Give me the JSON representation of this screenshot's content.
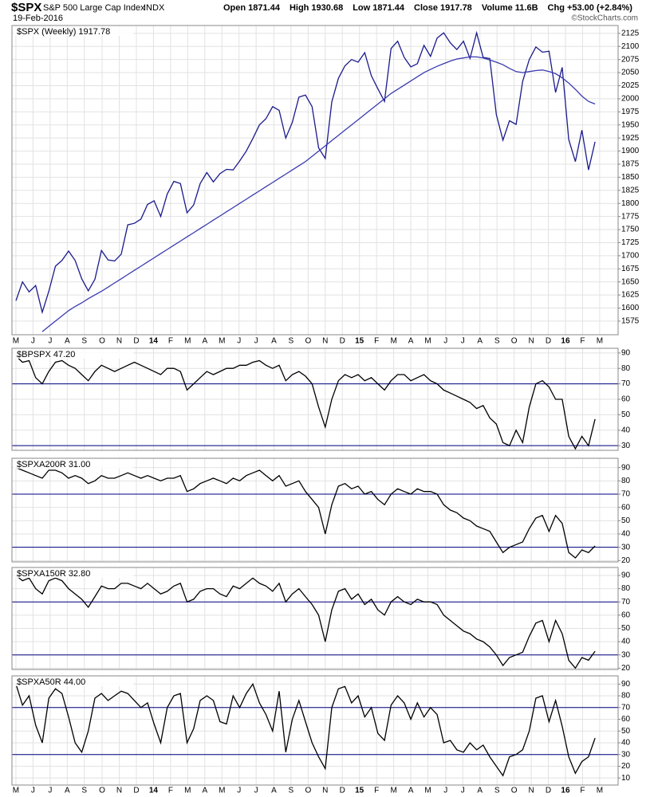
{
  "header": {
    "symbol": "$SPX",
    "name": "S&P 500 Large Cap Index",
    "exchange": "INDX",
    "date": "19-Feb-2016",
    "stats": [
      "Open 1871.44",
      "High 1930.68",
      "Low 1871.44",
      "Close 1917.78",
      "Volume 11.6B",
      "Chg +53.00 (+2.84%)"
    ],
    "credit": "©StockCharts.com"
  },
  "chart_data": [
    {
      "type": "line",
      "label": "$SPX (Weekly) 1917.78",
      "xlim": [
        -0.6,
        91.5
      ],
      "xticks": [
        {
          "value": 0,
          "label": "M"
        },
        {
          "value": 2.6,
          "label": "J"
        },
        {
          "value": 5.2,
          "label": "J"
        },
        {
          "value": 7.8,
          "label": "A"
        },
        {
          "value": 10.4,
          "label": "S"
        },
        {
          "value": 13.1,
          "label": "O"
        },
        {
          "value": 15.7,
          "label": "N"
        },
        {
          "value": 18.3,
          "label": "D"
        },
        {
          "value": 20.9,
          "label": "14"
        },
        {
          "value": 23.5,
          "label": "F"
        },
        {
          "value": 26.1,
          "label": "M"
        },
        {
          "value": 28.7,
          "label": "A"
        },
        {
          "value": 31.3,
          "label": "M"
        },
        {
          "value": 33.9,
          "label": "J"
        },
        {
          "value": 36.5,
          "label": "J"
        },
        {
          "value": 39.2,
          "label": "A"
        },
        {
          "value": 41.8,
          "label": "S"
        },
        {
          "value": 44.4,
          "label": "O"
        },
        {
          "value": 47,
          "label": "N"
        },
        {
          "value": 49.6,
          "label": "D"
        },
        {
          "value": 52.2,
          "label": "15"
        },
        {
          "value": 54.8,
          "label": "F"
        },
        {
          "value": 57.4,
          "label": "M"
        },
        {
          "value": 60,
          "label": "A"
        },
        {
          "value": 62.6,
          "label": "M"
        },
        {
          "value": 65.3,
          "label": "J"
        },
        {
          "value": 67.9,
          "label": "J"
        },
        {
          "value": 70.5,
          "label": "A"
        },
        {
          "value": 73.1,
          "label": "S"
        },
        {
          "value": 75.7,
          "label": "O"
        },
        {
          "value": 78.3,
          "label": "N"
        },
        {
          "value": 80.9,
          "label": "D"
        },
        {
          "value": 83.5,
          "label": "16"
        },
        {
          "value": 86.1,
          "label": "F"
        },
        {
          "value": 88.7,
          "label": "M"
        }
      ],
      "ylim": [
        1549,
        2140
      ],
      "yticks": [
        1575,
        1600,
        1625,
        1650,
        1675,
        1700,
        1725,
        1750,
        1775,
        1800,
        1825,
        1850,
        1875,
        1900,
        1925,
        1950,
        1975,
        2000,
        2025,
        2050,
        2075,
        2100,
        2125
      ],
      "grid": true,
      "series": [
        {
          "color": "#1a1a8c",
          "values": [
            1614,
            1650,
            1631,
            1643,
            1592,
            1632,
            1680,
            1691,
            1709,
            1691,
            1656,
            1633,
            1655,
            1710,
            1692,
            1690,
            1703,
            1759,
            1762,
            1770,
            1798,
            1805,
            1775,
            1818,
            1842,
            1838,
            1782,
            1797,
            1838,
            1859,
            1841,
            1857,
            1865,
            1864,
            1881,
            1900,
            1924,
            1950,
            1962,
            1985,
            1978,
            1925,
            1955,
            2003,
            2007,
            1985,
            1906,
            1886,
            1994,
            2039,
            2063,
            2075,
            2070,
            2088,
            2044,
            2019,
            1995,
            2096,
            2110,
            2079,
            2061,
            2067,
            2102,
            2081,
            2116,
            2126,
            2107,
            2094,
            2110,
            2077,
            2126,
            2079,
            2077,
            1970,
            1921,
            1958,
            1951,
            2033,
            2075,
            2099,
            2089,
            2091,
            2012,
            2060,
            1922,
            1880,
            1940,
            1864,
            1917.78
          ]
        },
        {
          "color": "#3a3ab0",
          "values": [
            null,
            null,
            null,
            null,
            1555,
            1565,
            1575,
            1585,
            1595,
            1603,
            1610,
            1618,
            1625,
            1632,
            1640,
            1648,
            1656,
            1664,
            1672,
            1680,
            1688,
            1696,
            1704,
            1712,
            1720,
            1728,
            1736,
            1744,
            1752,
            1760,
            1768,
            1776,
            1784,
            1792,
            1800,
            1808,
            1816,
            1824,
            1832,
            1840,
            1848,
            1856,
            1864,
            1872,
            1880,
            1890,
            1900,
            1910,
            1920,
            1930,
            1940,
            1950,
            1960,
            1970,
            1980,
            1990,
            2000,
            2010,
            2018,
            2026,
            2034,
            2042,
            2050,
            2056,
            2062,
            2067,
            2072,
            2076,
            2078,
            2080,
            2080,
            2078,
            2074,
            2070,
            2065,
            2058,
            2052,
            2050,
            2052,
            2054,
            2055,
            2052,
            2048,
            2040,
            2030,
            2018,
            2005,
            1995,
            1990
          ]
        }
      ]
    },
    {
      "type": "line",
      "label": "$BPSPX 47.20",
      "ylim": [
        27,
        93
      ],
      "yticks": [
        30,
        40,
        50,
        60,
        70,
        80,
        90
      ],
      "hlines": [
        30,
        70
      ],
      "grid": true,
      "series": [
        {
          "color": "#000000",
          "values": [
            88,
            84,
            85,
            74,
            70,
            78,
            84,
            85,
            82,
            80,
            76,
            72,
            78,
            82,
            80,
            78,
            80,
            82,
            84,
            82,
            80,
            78,
            76,
            80,
            80,
            78,
            66,
            70,
            74,
            78,
            76,
            78,
            80,
            80,
            82,
            82,
            84,
            85,
            82,
            80,
            82,
            72,
            76,
            78,
            75,
            70,
            55,
            42,
            60,
            72,
            76,
            74,
            76,
            72,
            74,
            70,
            66,
            72,
            76,
            76,
            72,
            74,
            76,
            72,
            70,
            66,
            64,
            62,
            60,
            58,
            54,
            56,
            48,
            44,
            32,
            30,
            40,
            32,
            55,
            70,
            72,
            68,
            60,
            60,
            36,
            28,
            36,
            30,
            47.2
          ]
        }
      ]
    },
    {
      "type": "line",
      "label": "$SPXA200R 31.00",
      "ylim": [
        19,
        97
      ],
      "yticks": [
        20,
        30,
        40,
        50,
        60,
        70,
        80,
        90
      ],
      "hlines": [
        30,
        70
      ],
      "grid": true,
      "series": [
        {
          "color": "#000000",
          "values": [
            90,
            88,
            86,
            84,
            82,
            88,
            88,
            86,
            82,
            84,
            82,
            78,
            80,
            84,
            82,
            82,
            84,
            86,
            84,
            82,
            84,
            82,
            80,
            82,
            82,
            84,
            72,
            74,
            78,
            80,
            82,
            80,
            78,
            82,
            80,
            84,
            86,
            88,
            84,
            80,
            84,
            76,
            78,
            80,
            72,
            66,
            60,
            40,
            62,
            76,
            78,
            74,
            76,
            70,
            72,
            66,
            62,
            70,
            74,
            72,
            70,
            74,
            72,
            72,
            70,
            62,
            58,
            56,
            52,
            50,
            46,
            44,
            42,
            34,
            26,
            30,
            32,
            34,
            44,
            52,
            54,
            42,
            54,
            48,
            26,
            22,
            28,
            26,
            31
          ]
        }
      ]
    },
    {
      "type": "line",
      "label": "$SPXA150R 32.80",
      "ylim": [
        19,
        96
      ],
      "yticks": [
        20,
        30,
        40,
        50,
        60,
        70,
        80,
        90
      ],
      "hlines": [
        30,
        70
      ],
      "grid": true,
      "series": [
        {
          "color": "#000000",
          "values": [
            90,
            86,
            88,
            80,
            76,
            86,
            88,
            86,
            80,
            76,
            72,
            66,
            74,
            82,
            80,
            80,
            84,
            84,
            82,
            80,
            84,
            80,
            76,
            78,
            82,
            84,
            70,
            72,
            78,
            80,
            80,
            76,
            74,
            82,
            80,
            84,
            88,
            84,
            82,
            78,
            84,
            70,
            76,
            80,
            74,
            68,
            60,
            40,
            64,
            78,
            80,
            72,
            76,
            68,
            72,
            64,
            60,
            70,
            74,
            70,
            68,
            72,
            70,
            70,
            68,
            60,
            56,
            52,
            48,
            46,
            42,
            40,
            36,
            30,
            22,
            28,
            30,
            32,
            44,
            54,
            56,
            40,
            56,
            46,
            26,
            20,
            28,
            26,
            32.8
          ]
        }
      ]
    },
    {
      "type": "line",
      "label": "$SPXA50R 44.00",
      "ylim": [
        4,
        97
      ],
      "yticks": [
        10,
        20,
        30,
        40,
        50,
        60,
        70,
        80,
        90
      ],
      "hlines": [
        30,
        70
      ],
      "grid": true,
      "series": [
        {
          "color": "#000000",
          "values": [
            90,
            72,
            80,
            55,
            40,
            78,
            86,
            82,
            62,
            40,
            32,
            50,
            78,
            82,
            76,
            80,
            84,
            82,
            76,
            70,
            74,
            56,
            40,
            70,
            80,
            82,
            40,
            52,
            76,
            80,
            76,
            58,
            56,
            80,
            70,
            82,
            90,
            74,
            64,
            50,
            84,
            32,
            60,
            76,
            58,
            40,
            28,
            18,
            70,
            86,
            88,
            74,
            80,
            62,
            70,
            48,
            42,
            72,
            80,
            74,
            60,
            74,
            62,
            70,
            64,
            40,
            42,
            34,
            32,
            40,
            34,
            38,
            28,
            20,
            12,
            28,
            30,
            34,
            50,
            78,
            80,
            58,
            76,
            54,
            28,
            14,
            24,
            28,
            44
          ]
        }
      ]
    }
  ]
}
